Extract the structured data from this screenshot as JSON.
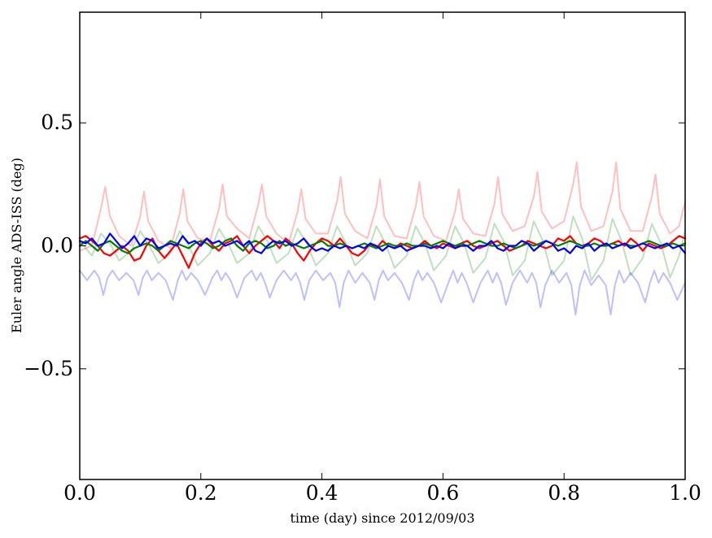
{
  "chart_data": {
    "type": "line",
    "title": "",
    "xlabel": "time (day) since 2012/09/03",
    "ylabel": "Euler angle ADS-ISS (deg)",
    "xlim": [
      0.0,
      1.0
    ],
    "ylim": [
      -0.95,
      0.95
    ],
    "x_ticks": [
      0.0,
      0.2,
      0.4,
      0.6,
      0.8,
      1.0
    ],
    "x_tick_labels": [
      "0.0",
      "0.2",
      "0.4",
      "0.6",
      "0.8",
      "1.0"
    ],
    "y_ticks": [
      -0.5,
      0.0,
      0.5
    ],
    "y_tick_labels": [
      "−0.5",
      "0.0",
      "0.5"
    ],
    "grid": false,
    "legend": "none",
    "series": [
      {
        "key": "red_faint",
        "color": "#ff0000",
        "opacity": 0.25,
        "x": [
          0.0,
          0.02,
          0.035,
          0.042,
          0.05,
          0.065,
          0.085,
          0.1,
          0.106,
          0.113,
          0.13,
          0.15,
          0.165,
          0.171,
          0.178,
          0.195,
          0.215,
          0.23,
          0.236,
          0.243,
          0.26,
          0.28,
          0.295,
          0.301,
          0.308,
          0.325,
          0.345,
          0.36,
          0.366,
          0.373,
          0.39,
          0.41,
          0.425,
          0.431,
          0.438,
          0.455,
          0.475,
          0.49,
          0.496,
          0.503,
          0.52,
          0.54,
          0.555,
          0.561,
          0.568,
          0.585,
          0.605,
          0.62,
          0.626,
          0.633,
          0.65,
          0.67,
          0.685,
          0.691,
          0.698,
          0.715,
          0.735,
          0.75,
          0.756,
          0.763,
          0.78,
          0.8,
          0.815,
          0.821,
          0.828,
          0.845,
          0.865,
          0.88,
          0.886,
          0.893,
          0.91,
          0.93,
          0.945,
          0.951,
          0.958,
          0.975,
          0.99,
          1.0
        ],
        "y": [
          -0.02,
          0.0,
          0.15,
          0.24,
          0.12,
          0.04,
          0.0,
          0.12,
          0.22,
          0.1,
          0.02,
          -0.01,
          0.13,
          0.23,
          0.1,
          0.03,
          0.02,
          0.15,
          0.25,
          0.12,
          0.07,
          0.03,
          0.17,
          0.25,
          0.12,
          0.05,
          0.01,
          0.14,
          0.23,
          0.11,
          0.05,
          0.05,
          0.18,
          0.28,
          0.13,
          0.06,
          0.03,
          0.16,
          0.27,
          0.12,
          0.04,
          0.03,
          0.16,
          0.26,
          0.12,
          0.04,
          0.02,
          0.14,
          0.23,
          0.11,
          0.05,
          0.04,
          0.17,
          0.28,
          0.13,
          0.06,
          0.08,
          0.2,
          0.3,
          0.14,
          0.07,
          0.1,
          0.25,
          0.34,
          0.16,
          0.06,
          0.08,
          0.22,
          0.34,
          0.15,
          0.06,
          0.06,
          0.2,
          0.29,
          0.13,
          0.05,
          0.08,
          0.18
        ]
      },
      {
        "key": "green_faint",
        "color": "#008000",
        "opacity": 0.25,
        "x": [
          0.0,
          0.02,
          0.035,
          0.05,
          0.065,
          0.085,
          0.1,
          0.115,
          0.13,
          0.15,
          0.165,
          0.18,
          0.195,
          0.215,
          0.23,
          0.245,
          0.26,
          0.28,
          0.295,
          0.31,
          0.325,
          0.345,
          0.36,
          0.375,
          0.39,
          0.41,
          0.425,
          0.44,
          0.455,
          0.475,
          0.49,
          0.505,
          0.52,
          0.54,
          0.555,
          0.57,
          0.585,
          0.605,
          0.62,
          0.635,
          0.65,
          0.67,
          0.685,
          0.7,
          0.715,
          0.735,
          0.75,
          0.765,
          0.78,
          0.8,
          0.815,
          0.83,
          0.845,
          0.865,
          0.88,
          0.895,
          0.91,
          0.93,
          0.945,
          0.96,
          0.975,
          0.99,
          1.0
        ],
        "y": [
          0.02,
          -0.04,
          0.05,
          0.01,
          -0.06,
          -0.02,
          0.06,
          0.0,
          -0.07,
          -0.03,
          0.06,
          0.0,
          -0.08,
          -0.03,
          0.07,
          0.01,
          -0.07,
          -0.03,
          0.08,
          0.02,
          -0.07,
          -0.03,
          0.07,
          0.01,
          -0.08,
          -0.03,
          0.08,
          0.01,
          -0.08,
          -0.03,
          0.08,
          0.01,
          -0.09,
          -0.04,
          0.08,
          0.01,
          -0.1,
          -0.04,
          0.08,
          0.01,
          -0.11,
          -0.05,
          0.09,
          0.02,
          -0.12,
          -0.06,
          0.1,
          0.02,
          -0.12,
          -0.06,
          0.12,
          0.03,
          -0.14,
          -0.06,
          0.11,
          0.02,
          -0.12,
          -0.05,
          0.09,
          0.01,
          -0.13,
          -0.04,
          0.06
        ]
      },
      {
        "key": "blue_faint",
        "color": "#0000ff",
        "opacity": 0.25,
        "x": [
          0.0,
          0.012,
          0.024,
          0.032,
          0.039,
          0.046,
          0.054,
          0.065,
          0.077,
          0.089,
          0.097,
          0.104,
          0.111,
          0.119,
          0.13,
          0.142,
          0.154,
          0.162,
          0.169,
          0.176,
          0.184,
          0.195,
          0.207,
          0.219,
          0.227,
          0.234,
          0.241,
          0.249,
          0.26,
          0.272,
          0.284,
          0.292,
          0.299,
          0.306,
          0.314,
          0.325,
          0.337,
          0.349,
          0.357,
          0.364,
          0.371,
          0.379,
          0.39,
          0.402,
          0.414,
          0.422,
          0.429,
          0.436,
          0.444,
          0.455,
          0.467,
          0.479,
          0.487,
          0.494,
          0.501,
          0.509,
          0.52,
          0.532,
          0.544,
          0.552,
          0.559,
          0.566,
          0.574,
          0.585,
          0.597,
          0.609,
          0.617,
          0.624,
          0.631,
          0.639,
          0.65,
          0.662,
          0.674,
          0.682,
          0.689,
          0.696,
          0.704,
          0.715,
          0.727,
          0.739,
          0.747,
          0.754,
          0.761,
          0.769,
          0.78,
          0.792,
          0.804,
          0.812,
          0.819,
          0.826,
          0.834,
          0.845,
          0.857,
          0.869,
          0.877,
          0.884,
          0.891,
          0.899,
          0.91,
          0.922,
          0.934,
          0.942,
          0.949,
          0.956,
          0.964,
          0.975,
          0.987,
          1.0
        ],
        "y": [
          -0.1,
          -0.14,
          -0.1,
          -0.13,
          -0.2,
          -0.13,
          -0.1,
          -0.14,
          -0.11,
          -0.14,
          -0.2,
          -0.13,
          -0.1,
          -0.14,
          -0.11,
          -0.14,
          -0.22,
          -0.14,
          -0.1,
          -0.14,
          -0.11,
          -0.14,
          -0.2,
          -0.13,
          -0.1,
          -0.14,
          -0.11,
          -0.14,
          -0.21,
          -0.13,
          -0.1,
          -0.14,
          -0.11,
          -0.15,
          -0.21,
          -0.14,
          -0.1,
          -0.14,
          -0.11,
          -0.15,
          -0.22,
          -0.14,
          -0.1,
          -0.14,
          -0.11,
          -0.15,
          -0.25,
          -0.15,
          -0.1,
          -0.15,
          -0.11,
          -0.15,
          -0.22,
          -0.14,
          -0.1,
          -0.14,
          -0.11,
          -0.15,
          -0.22,
          -0.14,
          -0.1,
          -0.14,
          -0.11,
          -0.15,
          -0.23,
          -0.15,
          -0.1,
          -0.15,
          -0.11,
          -0.15,
          -0.23,
          -0.15,
          -0.1,
          -0.15,
          -0.11,
          -0.15,
          -0.24,
          -0.15,
          -0.1,
          -0.15,
          -0.11,
          -0.15,
          -0.25,
          -0.16,
          -0.1,
          -0.15,
          -0.11,
          -0.16,
          -0.28,
          -0.16,
          -0.1,
          -0.16,
          -0.12,
          -0.16,
          -0.28,
          -0.16,
          -0.1,
          -0.15,
          -0.11,
          -0.15,
          -0.23,
          -0.15,
          -0.1,
          -0.15,
          -0.11,
          -0.15,
          -0.22,
          -0.15
        ]
      },
      {
        "key": "red",
        "color": "#ff0000",
        "opacity": 1.0,
        "x": [
          0.0,
          0.01,
          0.02,
          0.03,
          0.04,
          0.05,
          0.06,
          0.07,
          0.08,
          0.09,
          0.1,
          0.11,
          0.12,
          0.13,
          0.14,
          0.15,
          0.16,
          0.17,
          0.18,
          0.19,
          0.2,
          0.21,
          0.22,
          0.23,
          0.24,
          0.25,
          0.26,
          0.27,
          0.28,
          0.29,
          0.3,
          0.31,
          0.32,
          0.33,
          0.34,
          0.35,
          0.36,
          0.37,
          0.38,
          0.39,
          0.4,
          0.41,
          0.42,
          0.43,
          0.44,
          0.45,
          0.46,
          0.47,
          0.48,
          0.49,
          0.5,
          0.51,
          0.52,
          0.53,
          0.54,
          0.55,
          0.56,
          0.57,
          0.58,
          0.59,
          0.6,
          0.61,
          0.62,
          0.63,
          0.64,
          0.65,
          0.66,
          0.67,
          0.68,
          0.69,
          0.7,
          0.71,
          0.72,
          0.73,
          0.74,
          0.75,
          0.76,
          0.77,
          0.78,
          0.79,
          0.8,
          0.81,
          0.82,
          0.83,
          0.84,
          0.85,
          0.86,
          0.87,
          0.88,
          0.89,
          0.9,
          0.91,
          0.92,
          0.93,
          0.94,
          0.95,
          0.96,
          0.97,
          0.98,
          0.99,
          1.0
        ],
        "y": [
          0.03,
          0.04,
          0.02,
          0.0,
          -0.03,
          -0.04,
          -0.02,
          0.0,
          -0.02,
          -0.06,
          -0.05,
          0.0,
          0.03,
          -0.02,
          -0.05,
          -0.02,
          0.01,
          -0.04,
          -0.09,
          -0.03,
          0.01,
          0.03,
          0.0,
          -0.02,
          0.01,
          0.02,
          0.04,
          0.0,
          -0.03,
          0.0,
          0.02,
          0.04,
          0.02,
          -0.01,
          0.03,
          0.01,
          -0.03,
          -0.06,
          -0.02,
          0.01,
          0.03,
          0.02,
          0.0,
          0.03,
          0.0,
          -0.03,
          -0.04,
          -0.02,
          0.01,
          -0.01,
          0.02,
          0.0,
          -0.01,
          0.01,
          0.0,
          -0.01,
          0.0,
          0.02,
          0.0,
          -0.01,
          0.01,
          0.0,
          -0.01,
          0.01,
          0.02,
          0.0,
          -0.01,
          0.0,
          0.01,
          0.02,
          0.0,
          -0.02,
          -0.01,
          0.0,
          0.02,
          0.01,
          0.0,
          -0.01,
          0.0,
          0.03,
          0.02,
          0.04,
          0.01,
          0.0,
          0.01,
          0.03,
          0.02,
          0.0,
          0.01,
          0.02,
          0.0,
          0.03,
          0.01,
          -0.02,
          0.01,
          0.0,
          -0.01,
          0.0,
          0.02,
          0.04,
          0.03
        ]
      },
      {
        "key": "green",
        "color": "#008000",
        "opacity": 1.0,
        "x": [
          0.0,
          0.01,
          0.02,
          0.03,
          0.04,
          0.05,
          0.06,
          0.07,
          0.08,
          0.09,
          0.1,
          0.11,
          0.12,
          0.13,
          0.14,
          0.15,
          0.16,
          0.17,
          0.18,
          0.19,
          0.2,
          0.21,
          0.22,
          0.23,
          0.24,
          0.25,
          0.26,
          0.27,
          0.28,
          0.29,
          0.3,
          0.31,
          0.32,
          0.33,
          0.34,
          0.35,
          0.36,
          0.37,
          0.38,
          0.39,
          0.4,
          0.41,
          0.42,
          0.43,
          0.44,
          0.45,
          0.46,
          0.47,
          0.48,
          0.49,
          0.5,
          0.51,
          0.52,
          0.53,
          0.54,
          0.55,
          0.56,
          0.57,
          0.58,
          0.59,
          0.6,
          0.61,
          0.62,
          0.63,
          0.64,
          0.65,
          0.66,
          0.67,
          0.68,
          0.69,
          0.7,
          0.71,
          0.72,
          0.73,
          0.74,
          0.75,
          0.76,
          0.77,
          0.78,
          0.79,
          0.8,
          0.81,
          0.82,
          0.83,
          0.84,
          0.85,
          0.86,
          0.87,
          0.88,
          0.89,
          0.9,
          0.91,
          0.92,
          0.93,
          0.94,
          0.95,
          0.96,
          0.97,
          0.98,
          0.99,
          1.0
        ],
        "y": [
          0.0,
          0.02,
          0.0,
          -0.02,
          0.01,
          0.02,
          0.0,
          -0.02,
          -0.03,
          -0.01,
          0.0,
          0.01,
          0.0,
          -0.02,
          0.0,
          0.02,
          0.01,
          0.0,
          -0.01,
          0.01,
          0.02,
          0.01,
          -0.01,
          0.0,
          0.02,
          0.03,
          0.0,
          -0.02,
          0.01,
          0.02,
          0.01,
          -0.01,
          0.0,
          0.02,
          0.0,
          0.01,
          0.0,
          -0.01,
          0.0,
          0.01,
          0.02,
          0.0,
          0.0,
          0.01,
          0.0,
          -0.01,
          0.0,
          0.01,
          0.0,
          -0.01,
          0.0,
          0.01,
          0.0,
          0.0,
          0.01,
          0.0,
          0.0,
          0.01,
          0.0,
          0.01,
          0.02,
          0.01,
          0.0,
          0.01,
          0.0,
          0.01,
          0.02,
          0.01,
          0.0,
          0.0,
          0.01,
          0.0,
          -0.01,
          0.0,
          0.01,
          0.0,
          0.01,
          0.02,
          0.01,
          0.0,
          0.01,
          0.02,
          0.01,
          0.0,
          0.0,
          0.01,
          0.0,
          0.0,
          0.01,
          0.0,
          0.01,
          0.0,
          0.0,
          0.01,
          0.02,
          0.01,
          0.0,
          0.0,
          0.01,
          0.0,
          0.01
        ]
      },
      {
        "key": "blue",
        "color": "#0000ff",
        "opacity": 1.0,
        "x": [
          0.0,
          0.01,
          0.02,
          0.03,
          0.04,
          0.05,
          0.06,
          0.07,
          0.08,
          0.09,
          0.1,
          0.11,
          0.12,
          0.13,
          0.14,
          0.15,
          0.16,
          0.17,
          0.18,
          0.19,
          0.2,
          0.21,
          0.22,
          0.23,
          0.24,
          0.25,
          0.26,
          0.27,
          0.28,
          0.29,
          0.3,
          0.31,
          0.32,
          0.33,
          0.34,
          0.35,
          0.36,
          0.37,
          0.38,
          0.39,
          0.4,
          0.41,
          0.42,
          0.43,
          0.44,
          0.45,
          0.46,
          0.47,
          0.48,
          0.49,
          0.5,
          0.51,
          0.52,
          0.53,
          0.54,
          0.55,
          0.56,
          0.57,
          0.58,
          0.59,
          0.6,
          0.61,
          0.62,
          0.63,
          0.64,
          0.65,
          0.66,
          0.67,
          0.68,
          0.69,
          0.7,
          0.71,
          0.72,
          0.73,
          0.74,
          0.75,
          0.76,
          0.77,
          0.78,
          0.79,
          0.8,
          0.81,
          0.82,
          0.83,
          0.84,
          0.85,
          0.86,
          0.87,
          0.88,
          0.89,
          0.9,
          0.91,
          0.92,
          0.93,
          0.94,
          0.95,
          0.96,
          0.97,
          0.98,
          0.99,
          1.0
        ],
        "y": [
          0.02,
          0.01,
          0.03,
          0.0,
          0.01,
          0.05,
          0.02,
          -0.01,
          0.01,
          0.04,
          0.0,
          0.03,
          0.02,
          -0.01,
          0.0,
          0.01,
          0.0,
          0.04,
          0.01,
          0.02,
          0.0,
          0.03,
          0.01,
          0.02,
          0.0,
          0.01,
          0.02,
          0.0,
          0.02,
          -0.02,
          -0.03,
          0.0,
          0.02,
          0.01,
          0.02,
          0.0,
          0.01,
          0.03,
          0.0,
          -0.02,
          -0.01,
          -0.02,
          0.0,
          -0.01,
          0.0,
          -0.01,
          0.0,
          -0.01,
          0.01,
          0.0,
          -0.02,
          0.0,
          -0.01,
          0.0,
          -0.02,
          -0.01,
          0.0,
          0.0,
          -0.01,
          0.0,
          -0.01,
          0.01,
          -0.01,
          0.0,
          0.0,
          -0.02,
          0.0,
          0.0,
          0.02,
          -0.01,
          -0.02,
          0.0,
          0.0,
          0.02,
          0.01,
          -0.02,
          0.0,
          0.02,
          0.01,
          -0.02,
          -0.01,
          -0.03,
          0.0,
          -0.01,
          0.01,
          -0.02,
          0.0,
          0.01,
          -0.01,
          0.0,
          0.01,
          -0.01,
          0.0,
          0.01,
          0.0,
          -0.01,
          0.0,
          0.01,
          -0.01,
          0.0,
          -0.03
        ]
      }
    ]
  }
}
